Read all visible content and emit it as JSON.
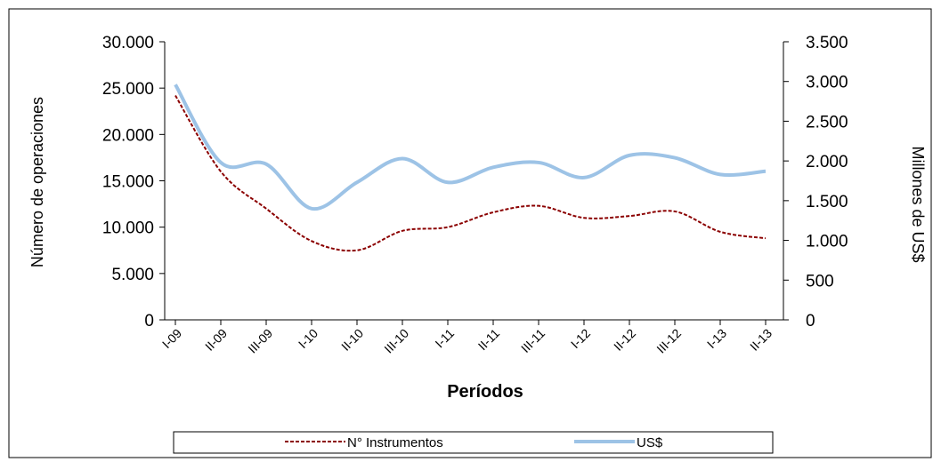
{
  "chart_data": {
    "type": "line",
    "categories": [
      "I-09",
      "II-09",
      "III-09",
      "I-10",
      "II-10",
      "III-10",
      "I-11",
      "II-11",
      "III-11",
      "I-12",
      "II-12",
      "III-12",
      "I-13",
      "II-13"
    ],
    "x_label": "Períodos",
    "y_label": "Número de operaciones",
    "y2_label": "Millones de US$",
    "ylim": [
      0,
      30000
    ],
    "yticks": [
      0,
      {
        "value": 5000,
        "label": "5.000"
      },
      {
        "value": 10000,
        "label": "10.000"
      },
      {
        "value": 15000,
        "label": "15.000"
      },
      {
        "value": 20000,
        "label": "20.000"
      },
      {
        "value": 25000,
        "label": "25.000"
      },
      {
        "value": 30000,
        "label": "30.000"
      }
    ],
    "y2lim": [
      0,
      3500
    ],
    "y2ticks": [
      0,
      500,
      {
        "value": 1000,
        "label": "1.000"
      },
      {
        "value": 1500,
        "label": "1.500"
      },
      {
        "value": 2000,
        "label": "2.000"
      },
      {
        "value": 2500,
        "label": "2.500"
      },
      {
        "value": 3000,
        "label": "3.000"
      },
      {
        "value": 3500,
        "label": "3.500"
      }
    ],
    "series": [
      {
        "name": "N° Instrumentos",
        "color": "#8b0000",
        "dash": true,
        "values": [
          24200,
          16000,
          12000,
          8500,
          7500,
          9600,
          10000,
          11600,
          12300,
          11000,
          11200,
          11700,
          9500,
          8800
        ]
      },
      {
        "name": "US$",
        "color": "#9dc3e6",
        "axis": "y2",
        "values": [
          2960,
          1980,
          1960,
          1400,
          1730,
          2030,
          1730,
          1920,
          1980,
          1790,
          2070,
          2040,
          1830,
          1870
        ]
      }
    ],
    "legend": "bottom"
  }
}
